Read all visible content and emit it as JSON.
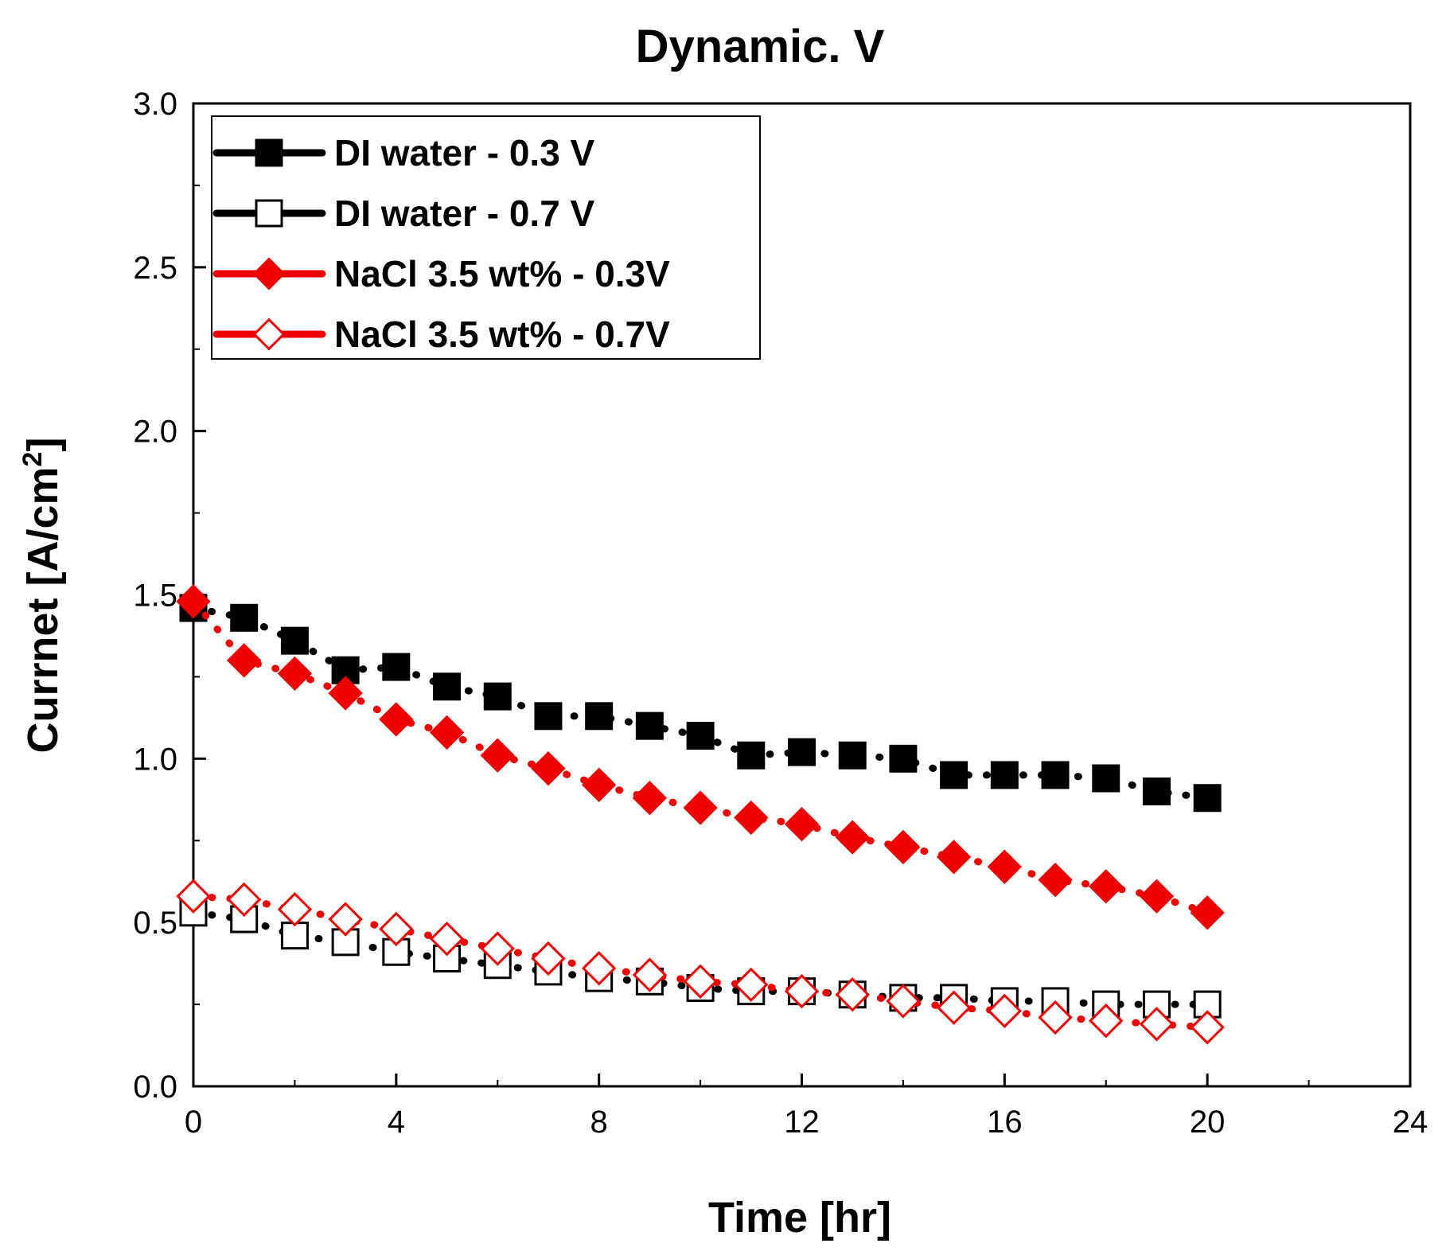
{
  "chart_data": {
    "type": "line",
    "title": "Dynamic. V",
    "xlabel": "Time [hr]",
    "ylabel": "Currnet [A/cm",
    "ylabel_superscript": "2",
    "ylabel_suffix": "]",
    "xlim": [
      0,
      24
    ],
    "ylim": [
      0.0,
      3.0
    ],
    "x_ticks": [
      "0",
      "4",
      "8",
      "12",
      "16",
      "20",
      "24"
    ],
    "y_ticks": [
      "0.0",
      "0.5",
      "1.0",
      "1.5",
      "2.0",
      "2.5",
      "3.0"
    ],
    "grid": false,
    "legend_position": "top-left",
    "x": [
      0,
      1,
      2,
      3,
      4,
      5,
      6,
      7,
      8,
      9,
      10,
      11,
      12,
      13,
      14,
      15,
      16,
      17,
      18,
      19,
      20
    ],
    "series": [
      {
        "name": "DI water - 0.3 V",
        "color": "#000000",
        "marker": "square-filled",
        "values": [
          1.46,
          1.43,
          1.36,
          1.27,
          1.28,
          1.22,
          1.19,
          1.13,
          1.13,
          1.1,
          1.07,
          1.01,
          1.02,
          1.01,
          1.0,
          0.95,
          0.95,
          0.95,
          0.94,
          0.9,
          0.88
        ]
      },
      {
        "name": "DI water - 0.7 V",
        "color": "#000000",
        "marker": "square-open",
        "values": [
          0.53,
          0.51,
          0.46,
          0.44,
          0.41,
          0.39,
          0.37,
          0.35,
          0.33,
          0.32,
          0.3,
          0.29,
          0.29,
          0.28,
          0.27,
          0.27,
          0.26,
          0.26,
          0.25,
          0.25,
          0.25
        ]
      },
      {
        "name": "NaCl 3.5 wt% - 0.3V",
        "color": "#ee0000",
        "marker": "diamond-filled",
        "values": [
          1.48,
          1.3,
          1.26,
          1.2,
          1.12,
          1.08,
          1.01,
          0.97,
          0.92,
          0.88,
          0.85,
          0.82,
          0.8,
          0.76,
          0.73,
          0.7,
          0.67,
          0.63,
          0.61,
          0.58,
          0.53
        ]
      },
      {
        "name": "NaCl 3.5 wt% - 0.7V",
        "color": "#ee0000",
        "marker": "diamond-open",
        "values": [
          0.58,
          0.57,
          0.54,
          0.51,
          0.48,
          0.45,
          0.42,
          0.39,
          0.36,
          0.34,
          0.32,
          0.31,
          0.29,
          0.28,
          0.26,
          0.24,
          0.23,
          0.21,
          0.2,
          0.19,
          0.18
        ]
      }
    ]
  }
}
